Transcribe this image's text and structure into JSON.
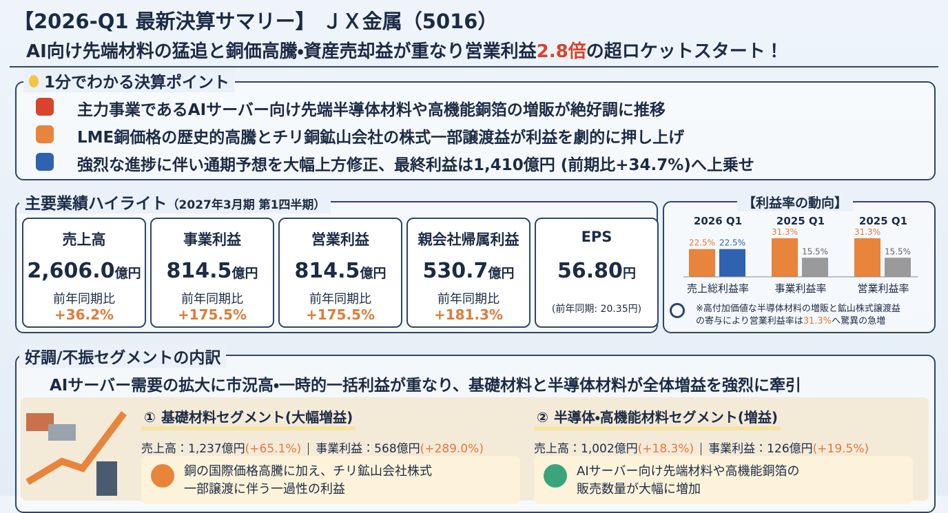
{
  "header": {
    "title": "【2026-Q1 最新決算サマリー】 ＪＸ金属（5016）",
    "subtitle_before": "AI向け先端材料の猛追と銅価高騰・資産売却益が重なり営業利益",
    "subtitle_highlight": "2.8倍",
    "subtitle_after": "の超ロケットスタート！"
  },
  "points": {
    "title": "1分でわかる決算ポイント",
    "items": [
      "主力事業であるAIサーバー向け先端半導体材料や高機能銅箔の増販が絶好調に推移",
      "LME銅価格の歴史的高騰とチリ銅鉱山会社の株式一部譲渡益が利益を劇的に押し上げ",
      "強烈な進捗に伴い通期予想を大幅上方修正、最終利益は1,410億円 (前期比+34.7%)へ上乗せ"
    ]
  },
  "highlights": {
    "title": "主要業績ハイライト",
    "period": "（2027年3月期 第1四半期）",
    "cards": [
      {
        "label": "売上高",
        "value": "2,606.0",
        "unit": "億円",
        "compare_label": "前年同期比",
        "change": "+36.2%"
      },
      {
        "label": "事業利益",
        "value": "814.5",
        "unit": "億円",
        "compare_label": "前年同期比",
        "change": "+175.5%"
      },
      {
        "label": "営業利益",
        "value": "814.5",
        "unit": "億円",
        "compare_label": "前年同期比",
        "change": "+175.5%"
      },
      {
        "label": "親会社帰属利益",
        "value": "530.7",
        "unit": "億円",
        "compare_label": "前年同期比",
        "change": "+181.3%"
      },
      {
        "label": "EPS",
        "value": "56.80",
        "unit": "円",
        "note": "(前年同期: 20.35円)"
      }
    ]
  },
  "margin_chart": {
    "title": "【利益率の動向】",
    "groups": [
      {
        "header": "2026 Q1",
        "label": "売上総利益率",
        "values": [
          22.5,
          22.5
        ],
        "value_labels": [
          "22.5%",
          "22.5%"
        ],
        "colors": [
          "#e8843c",
          "#2f62b0"
        ]
      },
      {
        "header": "2025 Q1",
        "label": "事業利益率",
        "values": [
          31.3,
          15.5
        ],
        "value_labels": [
          "31.3%",
          "15.5%"
        ],
        "colors": [
          "#e8843c",
          "#9a9a9a"
        ]
      },
      {
        "header": "2025 Q1",
        "label": "営業利益率",
        "values": [
          31.3,
          15.5
        ],
        "value_labels": [
          "31.3%",
          "15.5%"
        ],
        "colors": [
          "#e8843c",
          "#9a9a9a"
        ]
      }
    ],
    "note_line1": "※高付加価値な半導体材料の増販と鉱山株式譲渡益",
    "note_line2_before": "の寄与により営業利益率は",
    "note_highlight": "31.3%",
    "note_line2_after": "へ驚異の急増"
  },
  "segments": {
    "title": "好調/不振セグメントの内訳",
    "summary": "AIサーバー需要の拡大に市況高・一時的一括利益が重なり、基礎材料と半導体材料が全体増益を強烈に牽引",
    "items": [
      {
        "number": "①",
        "title": "基礎材料セグメント(大幅増益)",
        "sales": "売上高：1,237億円",
        "sales_change": "(+65.1%)",
        "profit": "事業利益：568億円",
        "profit_change": "(+289.0%)",
        "note": [
          "銅の国際価格高騰に加え、チリ鉱山会社株式",
          "一部譲渡に伴う一過性の利益"
        ]
      },
      {
        "number": "②",
        "title": "半導体・高機能材料セグメント(増益)",
        "sales": "売上高：1,002億円",
        "sales_change": "(+18.3%)",
        "profit": "事業利益：126億円",
        "profit_change": "(+19.5%)",
        "note": [
          "AIサーバー向け先端材料や高機能銅箔の",
          "販売数量が大幅に増加"
        ]
      }
    ]
  }
}
